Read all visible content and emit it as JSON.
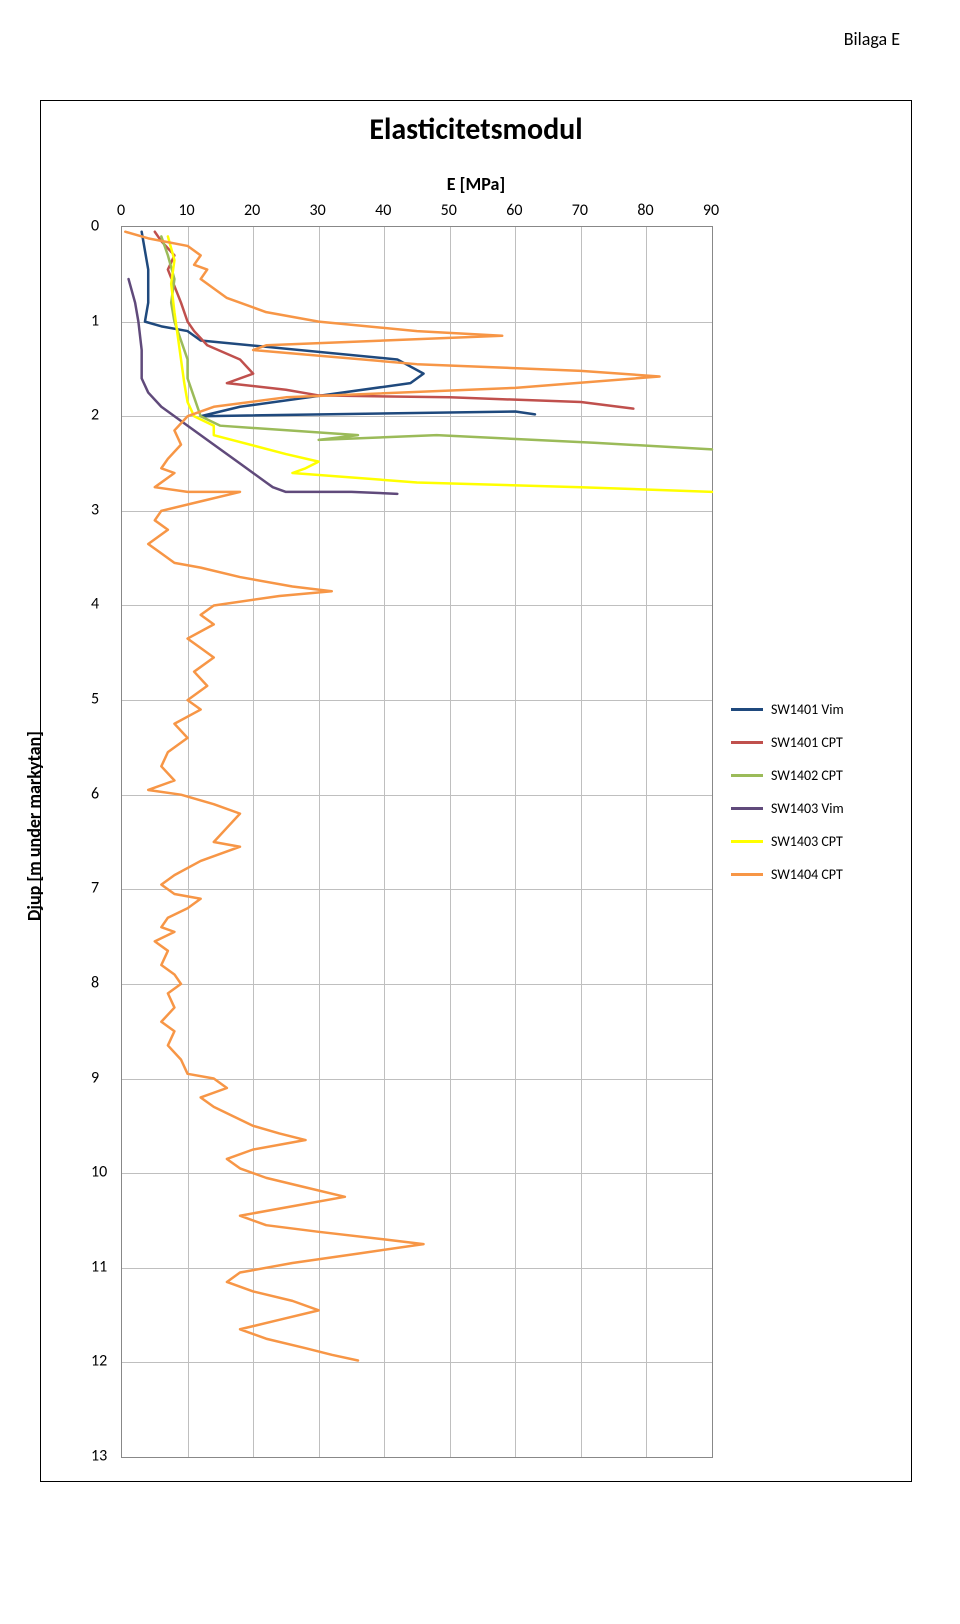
{
  "page_header": "Bilaga E",
  "chart": {
    "title": "Elasticitetsmodul",
    "x_axis_title": "E [MPa]",
    "y_axis_title": "Djup [m under markytan]",
    "x_min": 0,
    "x_max": 90,
    "x_tick_step": 10,
    "x_tick_labels": [
      "0",
      "10",
      "20",
      "30",
      "40",
      "50",
      "60",
      "70",
      "80",
      "90"
    ],
    "y_min": 0,
    "y_max": 13,
    "y_tick_step": 1,
    "y_tick_labels": [
      "0",
      "1",
      "2",
      "3",
      "4",
      "5",
      "6",
      "7",
      "8",
      "9",
      "10",
      "11",
      "12",
      "13"
    ],
    "background_color": "#ffffff",
    "grid_color": "#bfbfbf",
    "border_color": "#000000",
    "plot_border_color": "#888888",
    "title_fontsize": 30,
    "axis_title_fontsize": 18,
    "tick_label_fontsize": 16,
    "legend_fontsize": 14,
    "line_width": 2.5,
    "series": [
      {
        "name": "SW1401 Vim",
        "color": "#1f497d",
        "points": [
          [
            3,
            0.05
          ],
          [
            4,
            0.45
          ],
          [
            4,
            0.8
          ],
          [
            3.5,
            1.0
          ],
          [
            6,
            1.05
          ],
          [
            10,
            1.1
          ],
          [
            12,
            1.2
          ],
          [
            42,
            1.4
          ],
          [
            46,
            1.55
          ],
          [
            44,
            1.65
          ],
          [
            18,
            1.9
          ],
          [
            12,
            2.0
          ],
          [
            60,
            1.95
          ],
          [
            63,
            1.98
          ]
        ]
      },
      {
        "name": "SW1401 CPT",
        "color": "#c0504d",
        "points": [
          [
            5,
            0.05
          ],
          [
            6,
            0.15
          ],
          [
            8,
            0.3
          ],
          [
            7,
            0.45
          ],
          [
            9,
            0.8
          ],
          [
            10,
            1.0
          ],
          [
            11,
            1.1
          ],
          [
            13,
            1.25
          ],
          [
            18,
            1.4
          ],
          [
            20,
            1.55
          ],
          [
            16,
            1.65
          ],
          [
            25,
            1.72
          ],
          [
            30,
            1.78
          ],
          [
            50,
            1.8
          ],
          [
            70,
            1.85
          ],
          [
            78,
            1.92
          ]
        ]
      },
      {
        "name": "SW1402 CPT",
        "color": "#9bbb59",
        "points": [
          [
            6,
            0.1
          ],
          [
            7,
            0.3
          ],
          [
            8,
            0.55
          ],
          [
            7.5,
            0.8
          ],
          [
            8,
            1.0
          ],
          [
            9,
            1.2
          ],
          [
            10,
            1.4
          ],
          [
            10,
            1.6
          ],
          [
            11,
            1.8
          ],
          [
            12,
            2.0
          ],
          [
            15,
            2.1
          ],
          [
            36,
            2.2
          ],
          [
            30,
            2.25
          ],
          [
            48,
            2.2
          ],
          [
            72,
            2.28
          ],
          [
            90,
            2.35
          ]
        ]
      },
      {
        "name": "SW1403 Vim",
        "color": "#604a7b",
        "points": [
          [
            1,
            0.55
          ],
          [
            2,
            0.8
          ],
          [
            2.5,
            1.0
          ],
          [
            3,
            1.3
          ],
          [
            3,
            1.6
          ],
          [
            4,
            1.75
          ],
          [
            6,
            1.9
          ],
          [
            14,
            2.3
          ],
          [
            18,
            2.5
          ],
          [
            20,
            2.6
          ],
          [
            22,
            2.7
          ],
          [
            23,
            2.75
          ],
          [
            25,
            2.8
          ],
          [
            35,
            2.8
          ],
          [
            42,
            2.82
          ]
        ]
      },
      {
        "name": "SW1403 CPT",
        "color": "#ffff00",
        "points": [
          [
            7,
            0.1
          ],
          [
            8,
            0.35
          ],
          [
            7.5,
            0.6
          ],
          [
            8,
            0.9
          ],
          [
            8.5,
            1.15
          ],
          [
            9,
            1.4
          ],
          [
            9.5,
            1.65
          ],
          [
            10,
            1.85
          ],
          [
            11,
            2.0
          ],
          [
            14,
            2.1
          ],
          [
            14,
            2.2
          ],
          [
            25,
            2.4
          ],
          [
            30,
            2.48
          ],
          [
            28,
            2.55
          ],
          [
            26,
            2.6
          ],
          [
            45,
            2.7
          ],
          [
            70,
            2.75
          ],
          [
            90,
            2.8
          ]
        ]
      },
      {
        "name": "SW1404 CPT",
        "color": "#f79646",
        "points": [
          [
            0.5,
            0.05
          ],
          [
            4,
            0.12
          ],
          [
            10,
            0.2
          ],
          [
            12,
            0.3
          ],
          [
            11,
            0.4
          ],
          [
            13,
            0.45
          ],
          [
            12,
            0.55
          ],
          [
            14,
            0.65
          ],
          [
            16,
            0.75
          ],
          [
            22,
            0.9
          ],
          [
            30,
            1.0
          ],
          [
            45,
            1.1
          ],
          [
            58,
            1.15
          ],
          [
            40,
            1.2
          ],
          [
            22,
            1.25
          ],
          [
            20,
            1.3
          ],
          [
            45,
            1.45
          ],
          [
            70,
            1.52
          ],
          [
            82,
            1.58
          ],
          [
            60,
            1.7
          ],
          [
            25,
            1.8
          ],
          [
            14,
            1.9
          ],
          [
            10,
            2.0
          ],
          [
            8,
            2.15
          ],
          [
            9,
            2.3
          ],
          [
            7,
            2.45
          ],
          [
            6,
            2.55
          ],
          [
            8,
            2.6
          ],
          [
            5,
            2.75
          ],
          [
            10,
            2.8
          ],
          [
            18,
            2.8
          ],
          [
            12,
            2.9
          ],
          [
            6,
            3.0
          ],
          [
            5,
            3.1
          ],
          [
            7,
            3.2
          ],
          [
            4,
            3.35
          ],
          [
            6,
            3.45
          ],
          [
            8,
            3.55
          ],
          [
            12,
            3.6
          ],
          [
            18,
            3.7
          ],
          [
            26,
            3.8
          ],
          [
            32,
            3.85
          ],
          [
            24,
            3.9
          ],
          [
            14,
            4.0
          ],
          [
            12,
            4.1
          ],
          [
            14,
            4.2
          ],
          [
            10,
            4.35
          ],
          [
            12,
            4.45
          ],
          [
            14,
            4.55
          ],
          [
            11,
            4.7
          ],
          [
            13,
            4.85
          ],
          [
            10,
            5.0
          ],
          [
            12,
            5.1
          ],
          [
            8,
            5.25
          ],
          [
            10,
            5.4
          ],
          [
            7,
            5.55
          ],
          [
            6,
            5.7
          ],
          [
            8,
            5.85
          ],
          [
            4,
            5.95
          ],
          [
            9,
            6.0
          ],
          [
            14,
            6.1
          ],
          [
            18,
            6.2
          ],
          [
            16,
            6.35
          ],
          [
            14,
            6.5
          ],
          [
            18,
            6.55
          ],
          [
            12,
            6.7
          ],
          [
            8,
            6.85
          ],
          [
            6,
            6.95
          ],
          [
            8,
            7.05
          ],
          [
            12,
            7.1
          ],
          [
            10,
            7.2
          ],
          [
            7,
            7.3
          ],
          [
            6,
            7.4
          ],
          [
            8,
            7.45
          ],
          [
            5,
            7.55
          ],
          [
            7,
            7.65
          ],
          [
            6,
            7.8
          ],
          [
            8,
            7.9
          ],
          [
            9,
            8.0
          ],
          [
            7,
            8.1
          ],
          [
            8,
            8.25
          ],
          [
            6,
            8.4
          ],
          [
            8,
            8.5
          ],
          [
            7,
            8.65
          ],
          [
            9,
            8.8
          ],
          [
            10,
            8.95
          ],
          [
            14,
            9.0
          ],
          [
            16,
            9.1
          ],
          [
            12,
            9.2
          ],
          [
            14,
            9.3
          ],
          [
            17,
            9.4
          ],
          [
            20,
            9.5
          ],
          [
            24,
            9.58
          ],
          [
            28,
            9.65
          ],
          [
            20,
            9.75
          ],
          [
            16,
            9.85
          ],
          [
            18,
            9.95
          ],
          [
            22,
            10.05
          ],
          [
            28,
            10.15
          ],
          [
            34,
            10.25
          ],
          [
            26,
            10.35
          ],
          [
            18,
            10.45
          ],
          [
            22,
            10.55
          ],
          [
            30,
            10.62
          ],
          [
            40,
            10.7
          ],
          [
            46,
            10.75
          ],
          [
            36,
            10.85
          ],
          [
            26,
            10.95
          ],
          [
            18,
            11.05
          ],
          [
            16,
            11.15
          ],
          [
            20,
            11.25
          ],
          [
            26,
            11.35
          ],
          [
            30,
            11.45
          ],
          [
            24,
            11.55
          ],
          [
            18,
            11.65
          ],
          [
            22,
            11.75
          ],
          [
            28,
            11.85
          ],
          [
            32,
            11.92
          ],
          [
            36,
            11.98
          ]
        ]
      }
    ]
  }
}
